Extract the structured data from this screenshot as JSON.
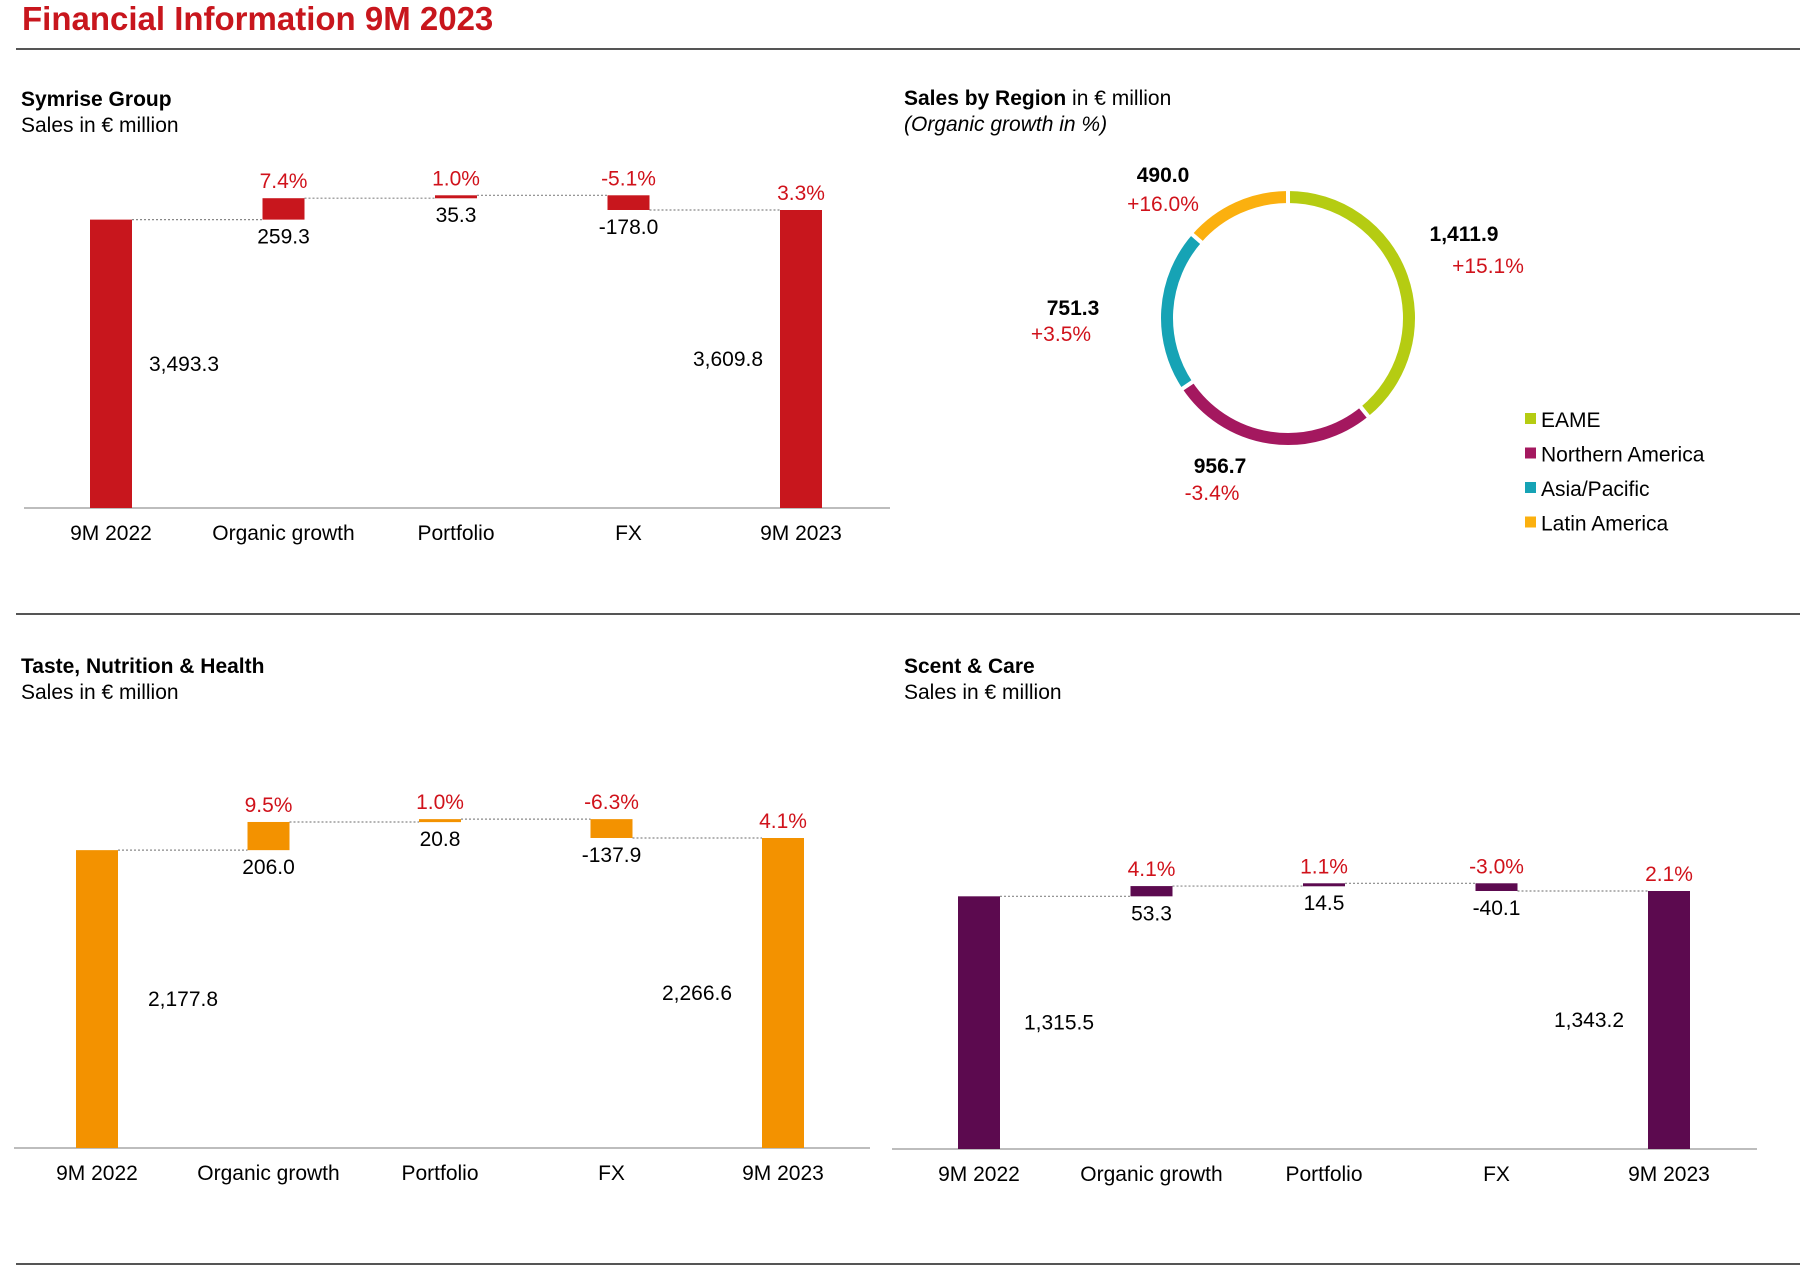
{
  "page_title": "Financial Information 9M 2023",
  "colors": {
    "title_red": "#c8161d",
    "group_bar": "#c8161d",
    "tnh_bar": "#f39200",
    "sc_bar": "#5c0a4f",
    "growth_text": "#d0121b",
    "eame": "#b5cc12",
    "northern_america": "#a4185f",
    "asia_pacific": "#16a3b5",
    "latin_america": "#fbb00f"
  },
  "panels": {
    "group": {
      "title": "Symrise Group",
      "subtitle": "Sales in € million"
    },
    "region": {
      "title": "Sales by Region",
      "title_suffix": " in € million",
      "subtitle": "(Organic growth in %)"
    },
    "tnh": {
      "title": "Taste, Nutrition & Health",
      "subtitle": "Sales in € million"
    },
    "sc": {
      "title": "Scent & Care",
      "subtitle": "Sales in € million"
    }
  },
  "chart_data": [
    {
      "type": "bar",
      "subtype": "waterfall",
      "title": "Symrise Group",
      "subtitle": "Sales in € million",
      "categories": [
        "9M 2022",
        "Organic growth",
        "Portfolio",
        "FX",
        "9M 2023"
      ],
      "values": [
        3493.3,
        259.3,
        35.3,
        -178.0,
        3609.8
      ],
      "value_labels": [
        "3,493.3",
        "259.3",
        "35.3",
        "-178.0",
        "3,609.8"
      ],
      "growth_labels": [
        "",
        "7.4%",
        "1.0%",
        "-5.1%",
        "3.3%"
      ]
    },
    {
      "type": "pie",
      "subtype": "donut",
      "title": "Sales by Region in € million",
      "subtitle": "(Organic growth in %)",
      "legend_position": "bottom-right",
      "slices": [
        {
          "name": "EAME",
          "value": 1411.9,
          "value_label": "1,411.9",
          "growth": "+15.1%"
        },
        {
          "name": "Northern America",
          "value": 956.7,
          "value_label": "956.7",
          "growth": "-3.4%"
        },
        {
          "name": "Asia/Pacific",
          "value": 751.3,
          "value_label": "751.3",
          "growth": "+3.5%"
        },
        {
          "name": "Latin America",
          "value": 490.0,
          "value_label": "490.0",
          "growth": "+16.0%"
        }
      ]
    },
    {
      "type": "bar",
      "subtype": "waterfall",
      "title": "Taste, Nutrition & Health",
      "subtitle": "Sales in € million",
      "categories": [
        "9M 2022",
        "Organic growth",
        "Portfolio",
        "FX",
        "9M 2023"
      ],
      "values": [
        2177.8,
        206.0,
        20.8,
        -137.9,
        2266.6
      ],
      "value_labels": [
        "2,177.8",
        "206.0",
        "20.8",
        "-137.9",
        "2,266.6"
      ],
      "growth_labels": [
        "",
        "9.5%",
        "1.0%",
        "-6.3%",
        "4.1%"
      ]
    },
    {
      "type": "bar",
      "subtype": "waterfall",
      "title": "Scent & Care",
      "subtitle": "Sales in € million",
      "categories": [
        "9M 2022",
        "Organic growth",
        "Portfolio",
        "FX",
        "9M 2023"
      ],
      "values": [
        1315.5,
        53.3,
        14.5,
        -40.1,
        1343.2
      ],
      "value_labels": [
        "1,315.5",
        "53.3",
        "14.5",
        "-40.1",
        "1,343.2"
      ],
      "growth_labels": [
        "",
        "4.1%",
        "1.1%",
        "-3.0%",
        "2.1%"
      ]
    }
  ]
}
